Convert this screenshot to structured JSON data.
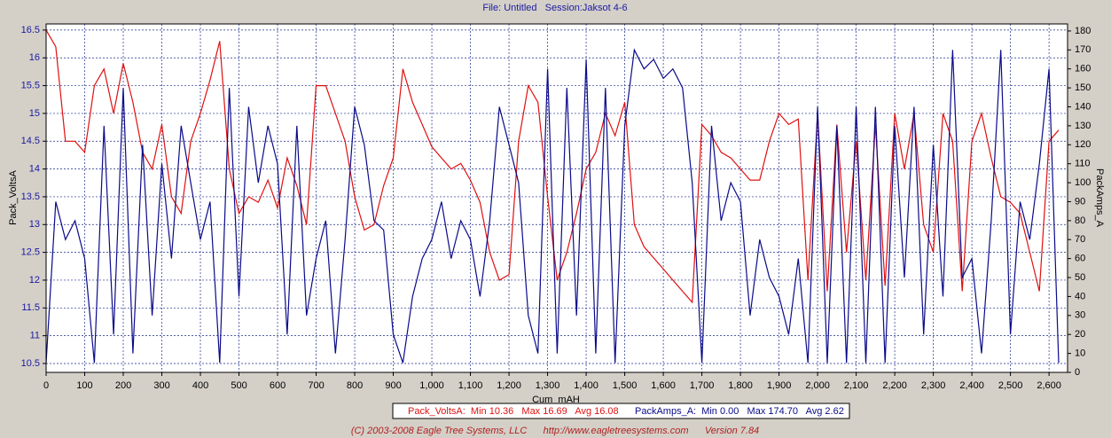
{
  "chart_data": {
    "type": "line",
    "title": "File: Untitled   Session:Jaksot 4-6",
    "x_label": "Cum_mAH",
    "y_label": "Pack_VoltsA",
    "y2_label": "PackAmps_A",
    "footer": "(C) 2003-2008 Eagle Tree Systems, LLC      http://www.eagletreesystems.com      Version 7.84",
    "grid": true,
    "xlim": [
      0,
      2648
    ],
    "ylim": [
      10.34,
      16.61
    ],
    "y2lim": [
      0,
      183.7
    ],
    "xticks": [
      0,
      100,
      200,
      300,
      400,
      500,
      600,
      700,
      800,
      900,
      {
        "value": 1000,
        "label": "1,000"
      },
      {
        "value": 1100,
        "label": "1,100"
      },
      {
        "value": 1200,
        "label": "1,200"
      },
      {
        "value": 1300,
        "label": "1,300"
      },
      {
        "value": 1400,
        "label": "1,400"
      },
      {
        "value": 1500,
        "label": "1,500"
      },
      {
        "value": 1600,
        "label": "1,600"
      },
      {
        "value": 1700,
        "label": "1,700"
      },
      {
        "value": 1800,
        "label": "1,800"
      },
      {
        "value": 1900,
        "label": "1,900"
      },
      {
        "value": 2000,
        "label": "2,000"
      },
      {
        "value": 2100,
        "label": "2,100"
      },
      {
        "value": 2200,
        "label": "2,200"
      },
      {
        "value": 2300,
        "label": "2,300"
      },
      {
        "value": 2400,
        "label": "2,400"
      },
      {
        "value": 2500,
        "label": "2,500"
      },
      {
        "value": 2600,
        "label": "2,600"
      }
    ],
    "yticks": [
      10.5,
      11,
      11.5,
      12,
      12.5,
      13,
      13.5,
      14,
      14.5,
      15,
      15.5,
      16,
      16.5
    ],
    "y2ticks": [
      0,
      10,
      20,
      30,
      40,
      50,
      60,
      70,
      80,
      90,
      100,
      110,
      120,
      130,
      140,
      150,
      160,
      170,
      180
    ],
    "x": [
      0,
      25,
      50,
      75,
      100,
      125,
      150,
      175,
      200,
      225,
      250,
      275,
      300,
      325,
      350,
      375,
      400,
      425,
      450,
      475,
      500,
      525,
      550,
      575,
      600,
      625,
      650,
      675,
      700,
      725,
      750,
      775,
      800,
      825,
      850,
      875,
      900,
      925,
      950,
      975,
      1000,
      1025,
      1050,
      1075,
      1100,
      1125,
      1150,
      1175,
      1200,
      1225,
      1250,
      1275,
      1300,
      1325,
      1350,
      1375,
      1400,
      1425,
      1450,
      1475,
      1500,
      1525,
      1550,
      1575,
      1600,
      1625,
      1650,
      1675,
      1700,
      1725,
      1750,
      1775,
      1800,
      1825,
      1850,
      1875,
      1900,
      1925,
      1950,
      1975,
      2000,
      2025,
      2050,
      2075,
      2100,
      2125,
      2150,
      2175,
      2200,
      2225,
      2250,
      2275,
      2300,
      2325,
      2350,
      2375,
      2400,
      2425,
      2450,
      2475,
      2500,
      2525,
      2550,
      2575,
      2600,
      2625
    ],
    "series": [
      {
        "name": "Pack_VoltsA",
        "color": "#e01010",
        "axis": "y",
        "legend": "Pack_VoltsA:  Min 10.36   Max 16.69   Avg 16.08",
        "values": [
          16.5,
          16.2,
          14.5,
          14.5,
          14.3,
          15.5,
          15.8,
          15.0,
          15.9,
          15.2,
          14.3,
          14.0,
          14.8,
          13.5,
          13.2,
          14.5,
          15.0,
          15.6,
          16.3,
          14.0,
          13.2,
          13.5,
          13.4,
          13.8,
          13.3,
          14.2,
          13.7,
          13.0,
          15.5,
          15.5,
          15.0,
          14.5,
          13.5,
          12.9,
          13.0,
          13.7,
          14.2,
          15.8,
          15.2,
          14.8,
          14.4,
          14.2,
          14.0,
          14.1,
          13.8,
          13.4,
          12.5,
          12.0,
          12.1,
          14.5,
          15.5,
          15.2,
          13.5,
          12.0,
          12.5,
          13.2,
          14.0,
          14.3,
          15.0,
          14.6,
          15.2,
          13.0,
          12.6,
          12.4,
          12.2,
          12.0,
          11.8,
          11.6,
          14.8,
          14.6,
          14.3,
          14.2,
          14.0,
          13.8,
          13.8,
          14.5,
          15.0,
          14.8,
          14.9,
          12.0,
          15.0,
          11.8,
          14.8,
          12.5,
          14.5,
          12.0,
          14.8,
          11.9,
          15.0,
          14.0,
          15.0,
          13.0,
          12.5,
          15.0,
          14.5,
          11.8,
          14.5,
          15.0,
          14.2,
          13.5,
          13.4,
          13.2,
          12.5,
          11.8,
          14.5,
          14.7
        ]
      },
      {
        "name": "PackAmps_A",
        "color": "#0a0a8a",
        "axis": "y2",
        "legend": "PackAmps_A:  Min 0.00   Max 174.70   Avg 2.62",
        "values": [
          5,
          90,
          70,
          80,
          60,
          5,
          130,
          20,
          150,
          10,
          120,
          30,
          110,
          60,
          130,
          100,
          70,
          90,
          5,
          150,
          40,
          140,
          100,
          130,
          110,
          20,
          130,
          30,
          60,
          80,
          10,
          70,
          140,
          120,
          80,
          75,
          20,
          5,
          40,
          60,
          70,
          90,
          60,
          80,
          70,
          40,
          80,
          140,
          120,
          100,
          30,
          10,
          160,
          10,
          150,
          30,
          165,
          10,
          150,
          5,
          130,
          170,
          160,
          165,
          155,
          160,
          150,
          100,
          5,
          130,
          80,
          100,
          90,
          30,
          70,
          50,
          40,
          20,
          60,
          5,
          140,
          5,
          130,
          5,
          140,
          5,
          140,
          5,
          130,
          50,
          140,
          20,
          120,
          40,
          170,
          50,
          60,
          10,
          80,
          170,
          20,
          90,
          70,
          110,
          160,
          5
        ]
      }
    ]
  }
}
